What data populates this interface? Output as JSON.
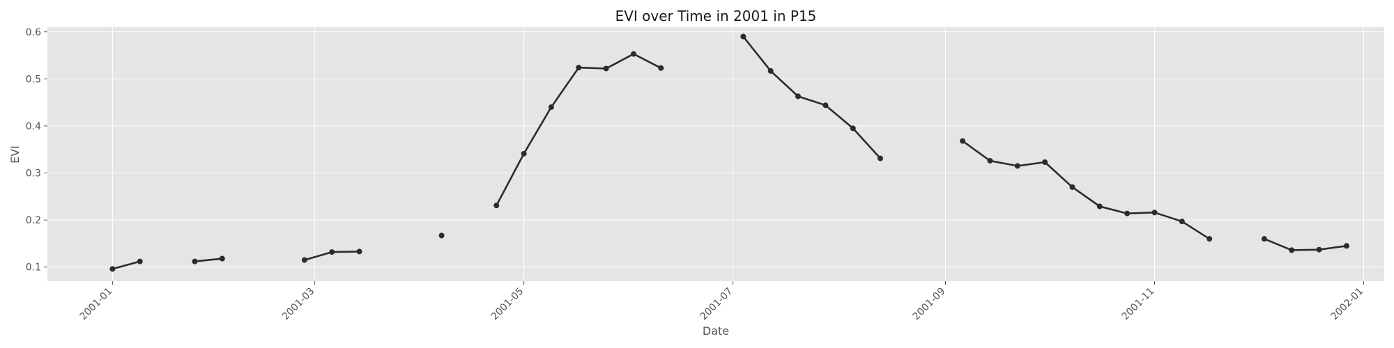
{
  "chart_data": {
    "type": "line",
    "title": "EVI over Time in 2001 in P15",
    "xlabel": "Date",
    "ylabel": "EVI",
    "x_ticks": [
      "2001-01",
      "2001-03",
      "2001-05",
      "2001-07",
      "2001-09",
      "2001-11",
      "2002-01"
    ],
    "y_ticks": [
      "0.1",
      "0.2",
      "0.3",
      "0.4",
      "0.5",
      "0.6"
    ],
    "xlim": [
      "2000-12-13",
      "2002-01-07"
    ],
    "ylim": [
      0.07,
      0.61
    ],
    "grid": true,
    "colors": {
      "line": "#2b2b2b",
      "background": "#e5e5e5",
      "grid": "#ffffff"
    },
    "series": [
      {
        "x": [
          "2001-01-01",
          "2001-01-09",
          "2001-01-17",
          "2001-01-25",
          "2001-02-02",
          "2001-02-10",
          "2001-02-18",
          "2001-02-26",
          "2001-03-06",
          "2001-03-14",
          "2001-03-22",
          "2001-03-30",
          "2001-04-07",
          "2001-04-15",
          "2001-04-23",
          "2001-05-01",
          "2001-05-09",
          "2001-05-17",
          "2001-05-25",
          "2001-06-02",
          "2001-06-10",
          "2001-06-18",
          "2001-06-26",
          "2001-07-04",
          "2001-07-12",
          "2001-07-20",
          "2001-07-28",
          "2001-08-05",
          "2001-08-13",
          "2001-08-21",
          "2001-08-29",
          "2001-09-06",
          "2001-09-14",
          "2001-09-22",
          "2001-09-30",
          "2001-10-08",
          "2001-10-16",
          "2001-10-24",
          "2001-11-01",
          "2001-11-09",
          "2001-11-17",
          "2001-11-25",
          "2001-12-03",
          "2001-12-11",
          "2001-12-19",
          "2001-12-27"
        ],
        "y": [
          0.096,
          0.112,
          null,
          0.112,
          0.118,
          null,
          null,
          0.115,
          0.132,
          0.133,
          null,
          null,
          0.167,
          null,
          0.231,
          0.341,
          0.44,
          0.524,
          0.522,
          0.553,
          0.523,
          null,
          null,
          0.59,
          0.517,
          0.463,
          0.444,
          0.395,
          0.331,
          null,
          null,
          0.368,
          0.326,
          0.315,
          0.323,
          0.27,
          0.229,
          0.214,
          0.216,
          0.197,
          0.16,
          null,
          0.16,
          0.136,
          0.137,
          0.145
        ]
      }
    ]
  }
}
